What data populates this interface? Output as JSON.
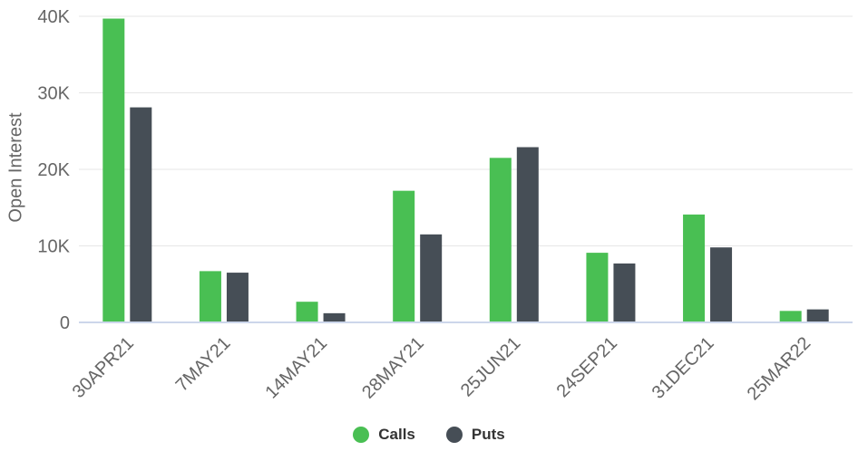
{
  "chart_data": {
    "type": "bar",
    "ylabel": "Open Interest",
    "xlabel": "",
    "ylim": [
      0,
      40000
    ],
    "yticks": [
      0,
      10000,
      20000,
      30000,
      40000
    ],
    "ytick_labels": [
      "0",
      "10K",
      "20K",
      "30K",
      "40K"
    ],
    "grid": true,
    "legend_position": "bottom-center",
    "categories": [
      "30APR21",
      "7MAY21",
      "14MAY21",
      "28MAY21",
      "25JUN21",
      "24SEP21",
      "31DEC21",
      "25MAR22"
    ],
    "series": [
      {
        "name": "Calls",
        "color": "#49BF53",
        "values": [
          39700,
          6700,
          2700,
          17200,
          21500,
          9100,
          14100,
          1500
        ]
      },
      {
        "name": "Puts",
        "color": "#464E56",
        "values": [
          28100,
          6500,
          1200,
          11500,
          22900,
          7700,
          9800,
          1700
        ]
      }
    ]
  }
}
